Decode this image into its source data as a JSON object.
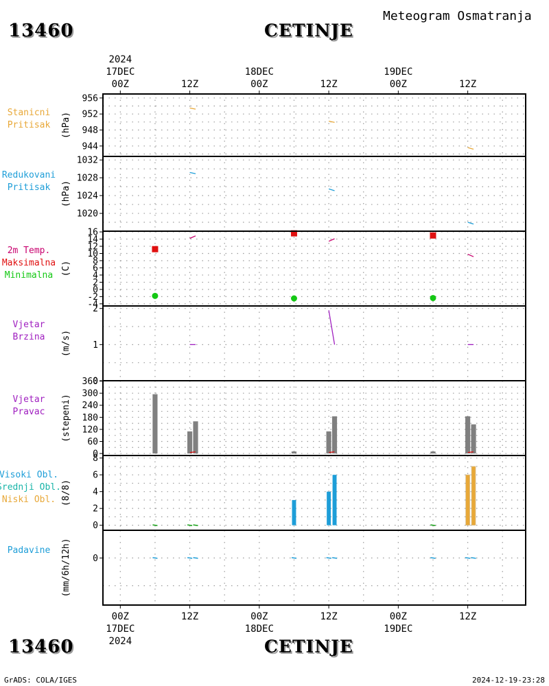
{
  "header": {
    "station_id": "13460",
    "station_name": "CETINJE",
    "meteogram_title": "Meteogram Osmatranja"
  },
  "footer": {
    "station_id": "13460",
    "station_name": "CETINJE",
    "credit": "GrADS: COLA/IGES",
    "timestamp": "2024-12-19-23:28"
  },
  "colors": {
    "pressure_station": "#e8a838",
    "pressure_reduced": "#1e9ed8",
    "temp_label": "#c8006e",
    "temp_max": "#e01010",
    "temp_min": "#14c814",
    "wind": "#a020c0",
    "direction_bar": "#808080",
    "cloud_high": "#1e9ed8",
    "cloud_mid": "#18b4a8",
    "cloud_low": "#e8a838",
    "precip": "#1e9ed8"
  },
  "chart_data": {
    "type": "meteogram",
    "top_axis": {
      "year": "2024",
      "day_labels": [
        {
          "t": 0,
          "label": "17DEC"
        },
        {
          "t": 24,
          "label": "18DEC"
        },
        {
          "t": 48,
          "label": "19DEC"
        }
      ],
      "hour_labels": [
        {
          "t": 0,
          "label": "00Z"
        },
        {
          "t": 12,
          "label": "12Z"
        },
        {
          "t": 24,
          "label": "00Z"
        },
        {
          "t": 36,
          "label": "12Z"
        },
        {
          "t": 48,
          "label": "00Z"
        },
        {
          "t": 60,
          "label": "12Z"
        }
      ]
    },
    "bottom_axis": {
      "year": "2024",
      "day_labels": [
        {
          "t": 0,
          "label": "17DEC"
        },
        {
          "t": 24,
          "label": "18DEC"
        },
        {
          "t": 48,
          "label": "19DEC"
        }
      ],
      "hour_labels": [
        {
          "t": 0,
          "label": "00Z"
        },
        {
          "t": 12,
          "label": "12Z"
        },
        {
          "t": 24,
          "label": "00Z"
        },
        {
          "t": 36,
          "label": "12Z"
        },
        {
          "t": 48,
          "label": "00Z"
        },
        {
          "t": 60,
          "label": "12Z"
        }
      ]
    },
    "xlim": [
      -3,
      70
    ],
    "panels": [
      {
        "id": "station-pressure",
        "labels": [
          {
            "text": "Stanicni",
            "color": "#e8a838"
          },
          {
            "text": "Pritisak",
            "color": "#e8a838"
          }
        ],
        "unit": "(hPa)",
        "ylim": [
          941.4,
          957
        ],
        "ticks": [
          944,
          948,
          952,
          956
        ],
        "grid_step": 2,
        "segments": [
          {
            "color": "#e8a838",
            "points": [
              [
                12,
                953.5
              ],
              [
                13,
                953.2
              ]
            ]
          },
          {
            "color": "#e8a838",
            "points": [
              [
                36,
                950.2
              ],
              [
                37,
                949.9
              ]
            ]
          },
          {
            "color": "#e8a838",
            "points": [
              [
                60,
                943.6
              ],
              [
                61,
                943.2
              ]
            ]
          }
        ]
      },
      {
        "id": "reduced-pressure",
        "labels": [
          {
            "text": "Redukovani",
            "color": "#1e9ed8"
          },
          {
            "text": "Pritisak",
            "color": "#1e9ed8"
          }
        ],
        "unit": "(hPa)",
        "ylim": [
          1016,
          1032.8
        ],
        "ticks": [
          1020,
          1024,
          1028,
          1032
        ],
        "grid_step": 2,
        "segments": [
          {
            "color": "#1e9ed8",
            "points": [
              [
                12,
                1029.2
              ],
              [
                13,
                1028.9
              ]
            ]
          },
          {
            "color": "#1e9ed8",
            "points": [
              [
                36,
                1025.5
              ],
              [
                37,
                1025.1
              ]
            ]
          },
          {
            "color": "#1e9ed8",
            "points": [
              [
                60,
                1018
              ],
              [
                61,
                1017.6
              ]
            ]
          }
        ]
      },
      {
        "id": "temperature",
        "labels": [
          {
            "text": "2m Temp.",
            "color": "#c8006e"
          },
          {
            "text": "Maksimalna",
            "color": "#e01010"
          },
          {
            "text": "Minimalna",
            "color": "#14c814"
          }
        ],
        "unit": "(C)",
        "ylim": [
          -4.6,
          16.2
        ],
        "ticks": [
          -4,
          -2,
          0,
          2,
          4,
          6,
          8,
          10,
          12,
          14,
          16
        ],
        "grid_step": 2,
        "segments": [
          {
            "color": "#c8006e",
            "points": [
              [
                12,
                14.2
              ],
              [
                13,
                14.9
              ]
            ]
          },
          {
            "color": "#c8006e",
            "points": [
              [
                36,
                13.4
              ],
              [
                37,
                14.1
              ]
            ]
          },
          {
            "color": "#c8006e",
            "points": [
              [
                60,
                9.8
              ],
              [
                61,
                9.1
              ]
            ]
          }
        ],
        "max_points": [
          [
            6,
            11.2
          ],
          [
            30,
            15.6
          ],
          [
            54,
            15
          ]
        ],
        "min_points": [
          [
            6,
            -1.8
          ],
          [
            30,
            -2.5
          ],
          [
            54,
            -2.4
          ]
        ]
      },
      {
        "id": "wind-speed",
        "labels": [
          {
            "text": "Vjetar",
            "color": "#a020c0"
          },
          {
            "text": "Brzina",
            "color": "#a020c0"
          }
        ],
        "unit": "(m/s)",
        "ylim": [
          0,
          2.07
        ],
        "ticks": [
          0,
          1,
          2
        ],
        "grid_step": 0.5,
        "segments": [
          {
            "color": "#a020c0",
            "points": [
              [
                12,
                1
              ],
              [
                13,
                1
              ]
            ]
          },
          {
            "color": "#a020c0",
            "points": [
              [
                36,
                1.95
              ],
              [
                37,
                1
              ]
            ]
          },
          {
            "color": "#a020c0",
            "points": [
              [
                60,
                1
              ],
              [
                61,
                1
              ]
            ]
          }
        ]
      },
      {
        "id": "wind-direction",
        "labels": [
          {
            "text": "Vjetar",
            "color": "#a020c0"
          },
          {
            "text": "Pravac",
            "color": "#a020c0"
          }
        ],
        "unit": "(stepeni)",
        "ylim": [
          -10,
          362
        ],
        "ticks": [
          0,
          60,
          120,
          180,
          240,
          300,
          360
        ],
        "grid_step": 30,
        "bar_width": 0.85,
        "bars": [
          {
            "t": 6,
            "v": 295
          },
          {
            "t": 12,
            "v": 110
          },
          {
            "t": 13,
            "v": 160
          },
          {
            "t": 30,
            "v": 10
          },
          {
            "t": 36,
            "v": 110
          },
          {
            "t": 37,
            "v": 185
          },
          {
            "t": 54,
            "v": 10
          },
          {
            "t": 60,
            "v": 185
          },
          {
            "t": 61,
            "v": 145
          }
        ],
        "red_ticks": [
          {
            "t": 12.5,
            "v": 5
          },
          {
            "t": 36.5,
            "v": 5
          },
          {
            "t": 60.5,
            "v": 5
          }
        ]
      },
      {
        "id": "cloud-cover",
        "labels": [
          {
            "text": "Visoki Obl.",
            "color": "#1e9ed8"
          },
          {
            "text": "Srednji Obl.",
            "color": "#18b4a8"
          },
          {
            "text": "Niski Obl.",
            "color": "#e8a838"
          }
        ],
        "unit": "(8/8)",
        "ylim": [
          -0.6,
          8.3
        ],
        "ticks": [
          0,
          2,
          4,
          6,
          8
        ],
        "grid_step": 1,
        "bar_width": 0.7,
        "bars": [
          {
            "t": 30,
            "v": 3,
            "color": "#1e9ed8"
          },
          {
            "t": 36,
            "v": 4,
            "color": "#1e9ed8"
          },
          {
            "t": 37,
            "v": 6,
            "color": "#1e9ed8"
          },
          {
            "t": 60,
            "v": 6,
            "color": "#e8a838",
            "outline": "#d8c090"
          },
          {
            "t": 61,
            "v": 7,
            "color": "#e8a838",
            "outline": "#d8c090"
          }
        ],
        "small_marks": [
          {
            "t": 6,
            "color": "#14a014"
          },
          {
            "t": 12,
            "color": "#14a014"
          },
          {
            "t": 13,
            "color": "#14a014"
          },
          {
            "t": 54,
            "color": "#14a014"
          }
        ]
      },
      {
        "id": "precipitation",
        "labels": [
          {
            "text": "Padavine",
            "color": "#1e9ed8"
          }
        ],
        "unit": "(mm/6h/12h)",
        "ylim": [
          -1.7,
          1
        ],
        "ticks": [
          0
        ],
        "grid_step": 1,
        "small_marks": [
          {
            "t": 6,
            "color": "#1e9ed8"
          },
          {
            "t": 12,
            "color": "#1e9ed8"
          },
          {
            "t": 13,
            "color": "#1e9ed8"
          },
          {
            "t": 30,
            "color": "#1e9ed8"
          },
          {
            "t": 36,
            "color": "#1e9ed8"
          },
          {
            "t": 37,
            "color": "#1e9ed8"
          },
          {
            "t": 54,
            "color": "#1e9ed8"
          },
          {
            "t": 60,
            "color": "#1e9ed8"
          },
          {
            "t": 61,
            "color": "#1e9ed8"
          }
        ]
      }
    ]
  }
}
